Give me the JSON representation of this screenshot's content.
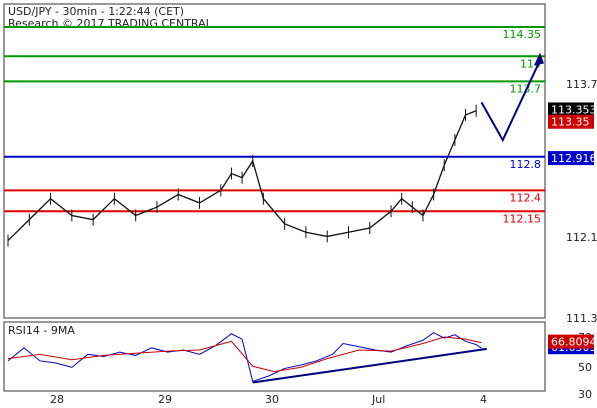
{
  "chart_data": [
    {
      "type": "candlestick",
      "title": "USD/JPY - 30min - 1:22:44 (CET)",
      "subtitle": "Research © 2017 TRADING CENTRAL",
      "x_ticks": [
        "28",
        "29",
        "30",
        "Jul",
        "4"
      ],
      "y_ticks": [
        "113.7",
        "112.1",
        "111.3"
      ],
      "ylim": [
        110.9,
        114.6
      ],
      "grid": false,
      "last_price": {
        "value": 113.353,
        "label": "113.353"
      },
      "price_tags": [
        {
          "label": "113.35",
          "value": 113.35,
          "color": "#cc0000"
        },
        {
          "label": "112.916",
          "value": 112.916,
          "color": "#0000cc"
        }
      ],
      "levels": [
        {
          "label": "114.35",
          "value": 114.35,
          "color": "#009900"
        },
        {
          "label": "114",
          "value": 114.0,
          "color": "#009900"
        },
        {
          "label": "113.7",
          "value": 113.7,
          "color": "#009900"
        },
        {
          "label": "112.8",
          "value": 112.8,
          "color": "#0000cc"
        },
        {
          "label": "112.4",
          "value": 112.4,
          "color": "#dd0000"
        },
        {
          "label": "112.15",
          "value": 112.15,
          "color": "#dd0000"
        }
      ],
      "forecast_path": [
        [
          89,
          113.45
        ],
        [
          93,
          113.0
        ],
        [
          100,
          113.95
        ]
      ],
      "price_path": [
        [
          0,
          111.8
        ],
        [
          4,
          112.05
        ],
        [
          8,
          112.3
        ],
        [
          12,
          112.1
        ],
        [
          16,
          112.05
        ],
        [
          20,
          112.3
        ],
        [
          24,
          112.1
        ],
        [
          28,
          112.2
        ],
        [
          32,
          112.35
        ],
        [
          36,
          112.25
        ],
        [
          40,
          112.4
        ],
        [
          42,
          112.6
        ],
        [
          44,
          112.55
        ],
        [
          46,
          112.75
        ],
        [
          48,
          112.3
        ],
        [
          52,
          112.0
        ],
        [
          56,
          111.9
        ],
        [
          60,
          111.85
        ],
        [
          64,
          111.9
        ],
        [
          68,
          111.95
        ],
        [
          72,
          112.15
        ],
        [
          74,
          112.3
        ],
        [
          76,
          112.2
        ],
        [
          78,
          112.1
        ],
        [
          80,
          112.35
        ],
        [
          82,
          112.7
        ],
        [
          84,
          113.0
        ],
        [
          86,
          113.3
        ],
        [
          88,
          113.35
        ]
      ]
    },
    {
      "type": "line",
      "title": "RSI14 - 9MA",
      "y_ticks": [
        "70",
        "50",
        "30"
      ],
      "ylim": [
        24,
        84
      ],
      "series": [
        {
          "name": "RSI14",
          "color": "#0000cc",
          "value": 61.6509,
          "label": "61.6509",
          "values": [
            [
              0,
              50
            ],
            [
              3,
              62
            ],
            [
              6,
              50
            ],
            [
              9,
              48
            ],
            [
              12,
              44
            ],
            [
              15,
              56
            ],
            [
              18,
              54
            ],
            [
              21,
              58
            ],
            [
              24,
              55
            ],
            [
              27,
              62
            ],
            [
              30,
              58
            ],
            [
              33,
              60
            ],
            [
              36,
              56
            ],
            [
              39,
              64
            ],
            [
              42,
              75
            ],
            [
              44,
              70
            ],
            [
              46,
              31
            ],
            [
              49,
              36
            ],
            [
              52,
              43
            ],
            [
              55,
              46
            ],
            [
              58,
              50
            ],
            [
              61,
              56
            ],
            [
              63,
              66
            ],
            [
              66,
              63
            ],
            [
              69,
              60
            ],
            [
              72,
              58
            ],
            [
              75,
              64
            ],
            [
              78,
              69
            ],
            [
              80,
              76
            ],
            [
              82,
              71
            ],
            [
              84,
              74
            ],
            [
              86,
              68
            ],
            [
              88,
              65
            ],
            [
              89,
              61.65
            ]
          ]
        },
        {
          "name": "9MA",
          "color": "#cc0000",
          "value": 66.8094,
          "label": "66.8094",
          "values": [
            [
              0,
              52
            ],
            [
              6,
              56
            ],
            [
              12,
              51
            ],
            [
              18,
              55
            ],
            [
              24,
              57
            ],
            [
              30,
              59
            ],
            [
              36,
              60
            ],
            [
              42,
              68
            ],
            [
              46,
              45
            ],
            [
              50,
              40
            ],
            [
              55,
              44
            ],
            [
              60,
              52
            ],
            [
              66,
              60
            ],
            [
              72,
              59
            ],
            [
              78,
              66
            ],
            [
              82,
              72
            ],
            [
              86,
              70
            ],
            [
              89,
              66.8
            ]
          ]
        }
      ],
      "trendline": [
        [
          46,
          30
        ],
        [
          90,
          61
        ]
      ]
    }
  ]
}
